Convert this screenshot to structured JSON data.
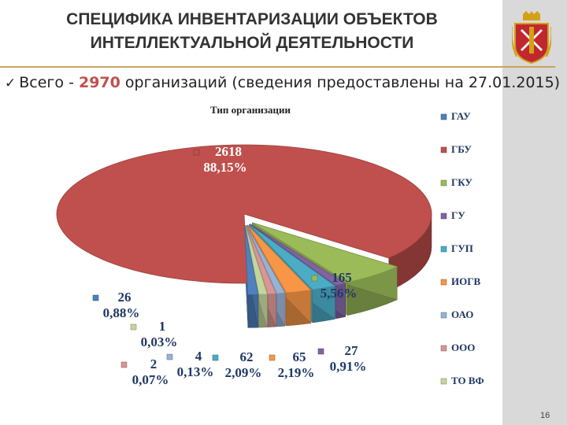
{
  "slide": {
    "title_line1": "СПЕЦИФИКА ИНВЕНТАРИЗАЦИИ ОБЪЕКТОВ",
    "title_line2": "ИНТЕЛЛЕКТУАЛЬНОЙ ДЕЯТЕЛЬНОСТИ",
    "summary_prefix": "Всего - ",
    "summary_count": "2970",
    "summary_suffix": " организаций (сведения предоставлены на 27.01.2015)",
    "page_number": "16",
    "emblem_icon": "saint-petersburg-coat-of-arms-icon"
  },
  "colors": {
    "accent_text": "#c0504d",
    "rule": "#c8a45e"
  },
  "chart_data": {
    "type": "pie",
    "title": "Тип организации",
    "legend_position": "right",
    "series": [
      {
        "name": "ГАУ",
        "value": 26,
        "percent": "0,88%",
        "color": "#4f81bd"
      },
      {
        "name": "ГБУ",
        "value": 2618,
        "percent": "88,15%",
        "color": "#c0504d"
      },
      {
        "name": "ГКУ",
        "value": 165,
        "percent": "5,56%",
        "color": "#9bbb59"
      },
      {
        "name": "ГУ",
        "value": 27,
        "percent": "0,91%",
        "color": "#8064a2"
      },
      {
        "name": "ГУП",
        "value": 62,
        "percent": "2,09%",
        "color": "#4bacc6"
      },
      {
        "name": "ИОГВ",
        "value": 65,
        "percent": "2,19%",
        "color": "#f79646"
      },
      {
        "name": "ОАО",
        "value": 4,
        "percent": "0,13%",
        "color": "#95b3d7"
      },
      {
        "name": "ООО",
        "value": 2,
        "percent": "0,07%",
        "color": "#d99694"
      },
      {
        "name": "ТО ВФ",
        "value": 1,
        "percent": "0,03%",
        "color": "#c3d69b"
      }
    ]
  }
}
